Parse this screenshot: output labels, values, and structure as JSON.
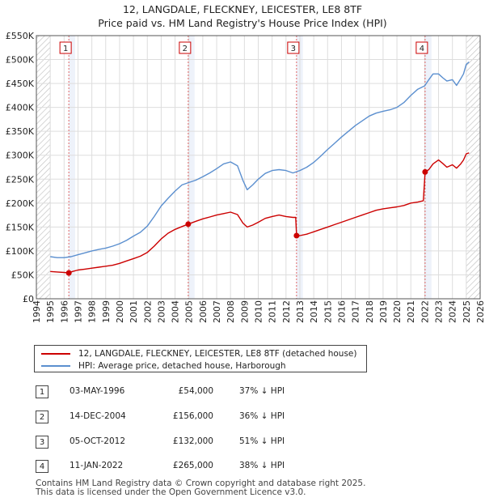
{
  "title_line1": "12, LANGDALE, FLECKNEY, LEICESTER, LE8 8TF",
  "title_line2": "Price paid vs. HM Land Registry's House Price Index (HPI)",
  "chart_data": {
    "type": "line",
    "title": "12, LANGDALE, FLECKNEY, LEICESTER, LE8 8TF — Price paid vs. HM Land Registry's House Price Index (HPI)",
    "xlabel": "",
    "ylabel": "",
    "xlim": [
      1994,
      2026
    ],
    "ylim": [
      0,
      550000
    ],
    "x_ticks": [
      "1994",
      "1995",
      "1996",
      "1997",
      "1998",
      "1999",
      "2000",
      "2001",
      "2002",
      "2003",
      "2004",
      "2005",
      "2006",
      "2007",
      "2008",
      "2009",
      "2010",
      "2011",
      "2012",
      "2013",
      "2014",
      "2015",
      "2016",
      "2017",
      "2018",
      "2019",
      "2020",
      "2021",
      "2022",
      "2023",
      "2024",
      "2025",
      "2026"
    ],
    "y_ticks": [
      {
        "value": 0,
        "label": "£0"
      },
      {
        "value": 50000,
        "label": "£50K"
      },
      {
        "value": 100000,
        "label": "£100K"
      },
      {
        "value": 150000,
        "label": "£150K"
      },
      {
        "value": 200000,
        "label": "£200K"
      },
      {
        "value": 250000,
        "label": "£250K"
      },
      {
        "value": 300000,
        "label": "£300K"
      },
      {
        "value": 350000,
        "label": "£350K"
      },
      {
        "value": 400000,
        "label": "£400K"
      },
      {
        "value": 450000,
        "label": "£450K"
      },
      {
        "value": 500000,
        "label": "£500K"
      },
      {
        "value": 550000,
        "label": "£550K"
      }
    ],
    "grid": true,
    "colors": {
      "red": "#cc0000",
      "blue": "#5b8fcf",
      "grid": "#dddddd",
      "shade": "#eef2fa",
      "hatch": "#bbbbbb",
      "marker_line": "#e06666"
    },
    "sale_years": [
      1996.34,
      2004.95,
      2012.76,
      2022.03
    ],
    "series": [
      {
        "name": "12, LANGDALE, FLECKNEY, LEICESTER, LE8 8TF (detached house)",
        "color": "#cc0000",
        "x": [
          1995.0,
          1995.5,
          1996.0,
          1996.34,
          1996.6,
          1997.0,
          1997.5,
          1998.0,
          1998.5,
          1999.0,
          1999.5,
          2000.0,
          2000.5,
          2001.0,
          2001.5,
          2002.0,
          2002.5,
          2003.0,
          2003.5,
          2004.0,
          2004.5,
          2004.95,
          2005.5,
          2006.0,
          2006.5,
          2007.0,
          2007.5,
          2008.0,
          2008.5,
          2008.9,
          2009.2,
          2009.6,
          2010.0,
          2010.5,
          2011.0,
          2011.5,
          2012.0,
          2012.5,
          2012.7,
          2012.76,
          2013.0,
          2013.5,
          2014.0,
          2014.5,
          2015.0,
          2015.5,
          2016.0,
          2016.5,
          2017.0,
          2017.5,
          2018.0,
          2018.5,
          2019.0,
          2019.5,
          2020.0,
          2020.5,
          2021.0,
          2021.5,
          2021.9,
          2022.03,
          2022.3,
          2022.6,
          2023.0,
          2023.3,
          2023.6,
          2024.0,
          2024.3,
          2024.6,
          2024.8,
          2025.0,
          2025.2
        ],
        "values": [
          57000,
          56000,
          55000,
          54000,
          57000,
          60000,
          62000,
          64000,
          66000,
          68000,
          70000,
          74000,
          79000,
          84000,
          89000,
          97000,
          110000,
          125000,
          137000,
          145000,
          151000,
          156000,
          162000,
          167000,
          171000,
          175000,
          178000,
          181000,
          176000,
          158000,
          150000,
          154000,
          160000,
          168000,
          172000,
          175000,
          172000,
          170000,
          170000,
          132000,
          132000,
          135000,
          140000,
          145000,
          150000,
          155000,
          160000,
          165000,
          170000,
          175000,
          180000,
          185000,
          188000,
          190000,
          192000,
          195000,
          200000,
          202000,
          205000,
          265000,
          270000,
          282000,
          290000,
          283000,
          275000,
          280000,
          273000,
          282000,
          290000,
          303000,
          305000
        ]
      },
      {
        "name": "HPI: Average price, detached house, Harborough",
        "color": "#5b8fcf",
        "x": [
          1995.0,
          1995.5,
          1996.0,
          1996.5,
          1997.0,
          1997.5,
          1998.0,
          1998.5,
          1999.0,
          1999.5,
          2000.0,
          2000.5,
          2001.0,
          2001.5,
          2002.0,
          2002.5,
          2003.0,
          2003.5,
          2004.0,
          2004.5,
          2005.0,
          2005.5,
          2006.0,
          2006.5,
          2007.0,
          2007.5,
          2008.0,
          2008.5,
          2008.9,
          2009.2,
          2009.6,
          2010.0,
          2010.5,
          2011.0,
          2011.5,
          2012.0,
          2012.5,
          2013.0,
          2013.5,
          2014.0,
          2014.5,
          2015.0,
          2015.5,
          2016.0,
          2016.5,
          2017.0,
          2017.5,
          2018.0,
          2018.5,
          2019.0,
          2019.5,
          2020.0,
          2020.5,
          2021.0,
          2021.5,
          2022.0,
          2022.3,
          2022.6,
          2023.0,
          2023.3,
          2023.6,
          2024.0,
          2024.3,
          2024.6,
          2024.8,
          2025.0,
          2025.2
        ],
        "values": [
          88000,
          86000,
          86000,
          88000,
          92000,
          96000,
          100000,
          103000,
          106000,
          110000,
          115000,
          122000,
          131000,
          139000,
          152000,
          172000,
          194000,
          210000,
          225000,
          238000,
          243000,
          248000,
          255000,
          263000,
          272000,
          282000,
          286000,
          278000,
          247000,
          228000,
          238000,
          250000,
          262000,
          268000,
          270000,
          268000,
          263000,
          268000,
          275000,
          285000,
          298000,
          312000,
          325000,
          338000,
          350000,
          362000,
          372000,
          382000,
          388000,
          392000,
          395000,
          400000,
          410000,
          425000,
          438000,
          445000,
          458000,
          470000,
          470000,
          462000,
          455000,
          458000,
          446000,
          460000,
          470000,
          490000,
          495000
        ]
      }
    ],
    "sales": [
      {
        "num": "1",
        "date": "03-MAY-1996",
        "price": "£54,000",
        "hpi": "37% ↓ HPI",
        "year": 1996.34,
        "value": 54000
      },
      {
        "num": "2",
        "date": "14-DEC-2004",
        "price": "£156,000",
        "hpi": "36% ↓ HPI",
        "year": 2004.95,
        "value": 156000
      },
      {
        "num": "3",
        "date": "05-OCT-2012",
        "price": "£132,000",
        "hpi": "51% ↓ HPI",
        "year": 2012.76,
        "value": 132000
      },
      {
        "num": "4",
        "date": "11-JAN-2022",
        "price": "£265,000",
        "hpi": "38% ↓ HPI",
        "year": 2022.03,
        "value": 265000
      }
    ]
  },
  "legend": {
    "property": "12, LANGDALE, FLECKNEY, LEICESTER, LE8 8TF (detached house)",
    "hpi": "HPI: Average price, detached house, Harborough"
  },
  "footer": {
    "line1": "Contains HM Land Registry data © Crown copyright and database right 2025.",
    "line2": "This data is licensed under the Open Government Licence v3.0."
  }
}
